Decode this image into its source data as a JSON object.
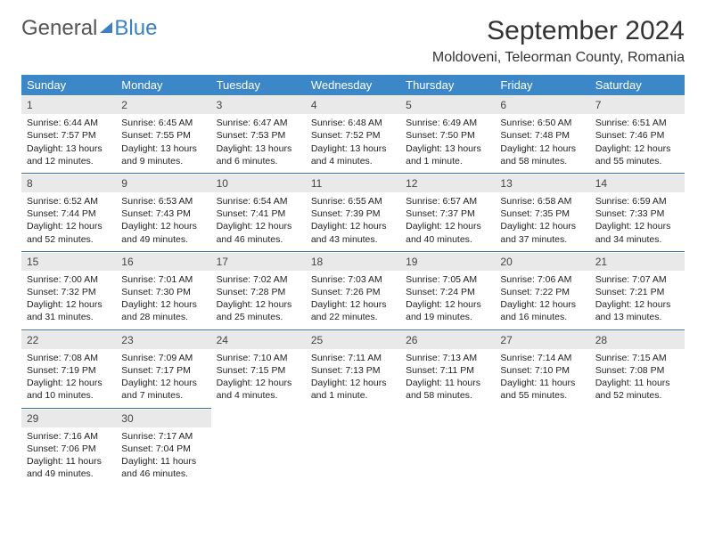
{
  "logo": {
    "text1": "General",
    "text2": "Blue"
  },
  "header": {
    "month_title": "September 2024",
    "location": "Moldoveni, Teleorman County, Romania"
  },
  "calendar": {
    "columns": [
      "Sunday",
      "Monday",
      "Tuesday",
      "Wednesday",
      "Thursday",
      "Friday",
      "Saturday"
    ],
    "header_bg": "#3b87c8",
    "daynum_bg": "#e9e9e9",
    "rule_color": "#3b6fa0",
    "weeks": [
      [
        {
          "n": "1",
          "sr": "Sunrise: 6:44 AM",
          "ss": "Sunset: 7:57 PM",
          "dl": "Daylight: 13 hours and 12 minutes."
        },
        {
          "n": "2",
          "sr": "Sunrise: 6:45 AM",
          "ss": "Sunset: 7:55 PM",
          "dl": "Daylight: 13 hours and 9 minutes."
        },
        {
          "n": "3",
          "sr": "Sunrise: 6:47 AM",
          "ss": "Sunset: 7:53 PM",
          "dl": "Daylight: 13 hours and 6 minutes."
        },
        {
          "n": "4",
          "sr": "Sunrise: 6:48 AM",
          "ss": "Sunset: 7:52 PM",
          "dl": "Daylight: 13 hours and 4 minutes."
        },
        {
          "n": "5",
          "sr": "Sunrise: 6:49 AM",
          "ss": "Sunset: 7:50 PM",
          "dl": "Daylight: 13 hours and 1 minute."
        },
        {
          "n": "6",
          "sr": "Sunrise: 6:50 AM",
          "ss": "Sunset: 7:48 PM",
          "dl": "Daylight: 12 hours and 58 minutes."
        },
        {
          "n": "7",
          "sr": "Sunrise: 6:51 AM",
          "ss": "Sunset: 7:46 PM",
          "dl": "Daylight: 12 hours and 55 minutes."
        }
      ],
      [
        {
          "n": "8",
          "sr": "Sunrise: 6:52 AM",
          "ss": "Sunset: 7:44 PM",
          "dl": "Daylight: 12 hours and 52 minutes."
        },
        {
          "n": "9",
          "sr": "Sunrise: 6:53 AM",
          "ss": "Sunset: 7:43 PM",
          "dl": "Daylight: 12 hours and 49 minutes."
        },
        {
          "n": "10",
          "sr": "Sunrise: 6:54 AM",
          "ss": "Sunset: 7:41 PM",
          "dl": "Daylight: 12 hours and 46 minutes."
        },
        {
          "n": "11",
          "sr": "Sunrise: 6:55 AM",
          "ss": "Sunset: 7:39 PM",
          "dl": "Daylight: 12 hours and 43 minutes."
        },
        {
          "n": "12",
          "sr": "Sunrise: 6:57 AM",
          "ss": "Sunset: 7:37 PM",
          "dl": "Daylight: 12 hours and 40 minutes."
        },
        {
          "n": "13",
          "sr": "Sunrise: 6:58 AM",
          "ss": "Sunset: 7:35 PM",
          "dl": "Daylight: 12 hours and 37 minutes."
        },
        {
          "n": "14",
          "sr": "Sunrise: 6:59 AM",
          "ss": "Sunset: 7:33 PM",
          "dl": "Daylight: 12 hours and 34 minutes."
        }
      ],
      [
        {
          "n": "15",
          "sr": "Sunrise: 7:00 AM",
          "ss": "Sunset: 7:32 PM",
          "dl": "Daylight: 12 hours and 31 minutes."
        },
        {
          "n": "16",
          "sr": "Sunrise: 7:01 AM",
          "ss": "Sunset: 7:30 PM",
          "dl": "Daylight: 12 hours and 28 minutes."
        },
        {
          "n": "17",
          "sr": "Sunrise: 7:02 AM",
          "ss": "Sunset: 7:28 PM",
          "dl": "Daylight: 12 hours and 25 minutes."
        },
        {
          "n": "18",
          "sr": "Sunrise: 7:03 AM",
          "ss": "Sunset: 7:26 PM",
          "dl": "Daylight: 12 hours and 22 minutes."
        },
        {
          "n": "19",
          "sr": "Sunrise: 7:05 AM",
          "ss": "Sunset: 7:24 PM",
          "dl": "Daylight: 12 hours and 19 minutes."
        },
        {
          "n": "20",
          "sr": "Sunrise: 7:06 AM",
          "ss": "Sunset: 7:22 PM",
          "dl": "Daylight: 12 hours and 16 minutes."
        },
        {
          "n": "21",
          "sr": "Sunrise: 7:07 AM",
          "ss": "Sunset: 7:21 PM",
          "dl": "Daylight: 12 hours and 13 minutes."
        }
      ],
      [
        {
          "n": "22",
          "sr": "Sunrise: 7:08 AM",
          "ss": "Sunset: 7:19 PM",
          "dl": "Daylight: 12 hours and 10 minutes."
        },
        {
          "n": "23",
          "sr": "Sunrise: 7:09 AM",
          "ss": "Sunset: 7:17 PM",
          "dl": "Daylight: 12 hours and 7 minutes."
        },
        {
          "n": "24",
          "sr": "Sunrise: 7:10 AM",
          "ss": "Sunset: 7:15 PM",
          "dl": "Daylight: 12 hours and 4 minutes."
        },
        {
          "n": "25",
          "sr": "Sunrise: 7:11 AM",
          "ss": "Sunset: 7:13 PM",
          "dl": "Daylight: 12 hours and 1 minute."
        },
        {
          "n": "26",
          "sr": "Sunrise: 7:13 AM",
          "ss": "Sunset: 7:11 PM",
          "dl": "Daylight: 11 hours and 58 minutes."
        },
        {
          "n": "27",
          "sr": "Sunrise: 7:14 AM",
          "ss": "Sunset: 7:10 PM",
          "dl": "Daylight: 11 hours and 55 minutes."
        },
        {
          "n": "28",
          "sr": "Sunrise: 7:15 AM",
          "ss": "Sunset: 7:08 PM",
          "dl": "Daylight: 11 hours and 52 minutes."
        }
      ],
      [
        {
          "n": "29",
          "sr": "Sunrise: 7:16 AM",
          "ss": "Sunset: 7:06 PM",
          "dl": "Daylight: 11 hours and 49 minutes."
        },
        {
          "n": "30",
          "sr": "Sunrise: 7:17 AM",
          "ss": "Sunset: 7:04 PM",
          "dl": "Daylight: 11 hours and 46 minutes."
        },
        null,
        null,
        null,
        null,
        null
      ]
    ]
  }
}
